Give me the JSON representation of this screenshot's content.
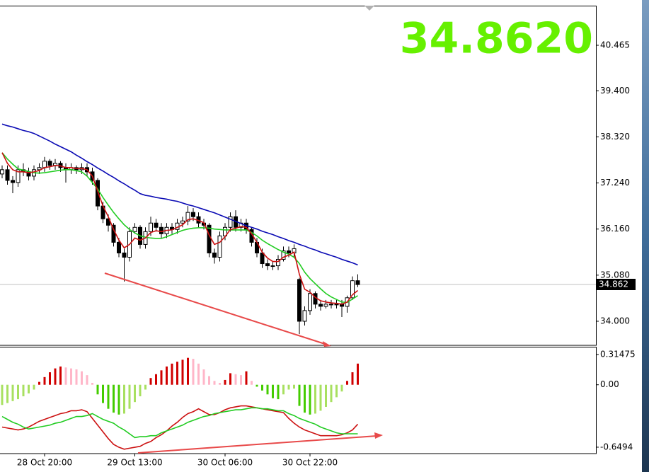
{
  "chart_data": {
    "type": "candlestick",
    "price_display": "34.8620",
    "categories": [
      null,
      null,
      null,
      null,
      null,
      null,
      null,
      null,
      "28 Oct 20:00",
      null,
      null,
      null,
      null,
      null,
      null,
      null,
      null,
      null,
      null,
      null,
      null,
      null,
      null,
      null,
      null,
      "29 Oct 13:00",
      null,
      null,
      null,
      null,
      null,
      null,
      null,
      null,
      null,
      null,
      null,
      null,
      null,
      null,
      null,
      null,
      "30 Oct 06:00",
      null,
      null,
      null,
      null,
      null,
      null,
      null,
      null,
      null,
      null,
      null,
      null,
      null,
      null,
      null,
      "30 Oct 22:00",
      null,
      null,
      null,
      null,
      null,
      null,
      null,
      null,
      null
    ],
    "open": [
      37.45,
      37.55,
      37.3,
      37.25,
      37.55,
      37.5,
      37.4,
      37.55,
      37.6,
      37.75,
      37.65,
      37.7,
      37.6,
      37.55,
      37.6,
      37.55,
      37.6,
      37.5,
      37.3,
      36.7,
      36.4,
      36.25,
      35.85,
      35.6,
      35.5,
      36.1,
      36.2,
      35.8,
      36.1,
      36.3,
      36.2,
      36.05,
      36.2,
      36.15,
      36.3,
      36.35,
      36.55,
      36.45,
      36.3,
      36.25,
      35.6,
      35.5,
      36.0,
      36.2,
      36.45,
      36.2,
      36.3,
      36.15,
      35.85,
      35.6,
      35.35,
      35.3,
      35.3,
      35.45,
      35.65,
      35.6,
      34.98,
      34.0,
      34.25,
      34.65,
      34.4,
      34.35,
      34.4,
      34.4,
      34.4,
      34.35,
      34.55,
      34.95
    ],
    "high": [
      37.65,
      37.65,
      37.4,
      37.65,
      37.7,
      37.6,
      37.65,
      37.7,
      37.85,
      37.8,
      37.8,
      37.75,
      37.7,
      37.7,
      37.65,
      37.7,
      37.7,
      37.6,
      37.35,
      36.8,
      36.5,
      36.3,
      35.95,
      35.7,
      36.2,
      36.3,
      36.25,
      36.2,
      36.45,
      36.4,
      36.3,
      36.3,
      36.3,
      36.4,
      36.45,
      36.7,
      36.65,
      36.55,
      36.4,
      36.3,
      35.7,
      36.1,
      36.3,
      36.55,
      36.6,
      36.4,
      36.4,
      36.2,
      35.95,
      35.7,
      35.45,
      35.4,
      35.55,
      35.75,
      35.75,
      35.8,
      35.02,
      34.35,
      34.75,
      34.7,
      34.5,
      34.5,
      34.5,
      34.5,
      34.5,
      34.6,
      35.05,
      35.1
    ],
    "low": [
      37.35,
      37.2,
      37.0,
      37.15,
      37.4,
      37.3,
      37.3,
      37.45,
      37.5,
      37.55,
      37.55,
      37.5,
      37.25,
      37.45,
      37.45,
      37.45,
      37.4,
      37.2,
      36.6,
      36.3,
      36.1,
      35.75,
      35.5,
      34.93,
      35.4,
      36.05,
      35.7,
      35.7,
      36.0,
      36.1,
      35.95,
      35.95,
      36.05,
      36.05,
      36.2,
      36.25,
      36.35,
      36.2,
      36.15,
      35.5,
      35.35,
      35.4,
      35.9,
      36.1,
      36.1,
      36.1,
      36.05,
      35.75,
      35.5,
      35.25,
      35.2,
      35.2,
      35.2,
      35.4,
      35.5,
      35.5,
      33.7,
      33.9,
      34.15,
      34.3,
      34.25,
      34.3,
      34.3,
      34.3,
      34.1,
      34.2,
      34.5,
      34.8
    ],
    "close": [
      37.55,
      37.3,
      37.25,
      37.55,
      37.5,
      37.4,
      37.55,
      37.6,
      37.75,
      37.65,
      37.7,
      37.6,
      37.55,
      37.6,
      37.55,
      37.6,
      37.5,
      37.3,
      36.7,
      36.4,
      36.25,
      35.85,
      35.6,
      35.5,
      36.1,
      36.2,
      35.8,
      36.1,
      36.3,
      36.2,
      36.05,
      36.2,
      36.15,
      36.3,
      36.35,
      36.55,
      36.45,
      36.3,
      36.25,
      35.6,
      35.5,
      36.0,
      36.2,
      36.45,
      36.2,
      36.3,
      36.15,
      35.85,
      35.6,
      35.35,
      35.3,
      35.3,
      35.45,
      35.65,
      35.6,
      35.7,
      34.0,
      34.25,
      34.65,
      34.4,
      34.35,
      34.4,
      34.4,
      34.4,
      34.35,
      34.55,
      34.95,
      34.86
    ],
    "series": [
      {
        "color": "#0a0ab4",
        "values": [
          38.62,
          38.58,
          38.55,
          38.51,
          38.47,
          38.44,
          38.4,
          38.34,
          38.28,
          38.22,
          38.15,
          38.09,
          38.03,
          37.97,
          37.89,
          37.82,
          37.74,
          37.67,
          37.59,
          37.52,
          37.44,
          37.37,
          37.29,
          37.22,
          37.14,
          37.07,
          36.99,
          36.95,
          36.93,
          36.9,
          36.88,
          36.86,
          36.83,
          36.81,
          36.77,
          36.73,
          36.7,
          36.66,
          36.62,
          36.58,
          36.54,
          36.49,
          36.44,
          36.39,
          36.34,
          36.29,
          36.24,
          36.2,
          36.16,
          36.11,
          36.07,
          36.03,
          35.98,
          35.94,
          35.89,
          35.85,
          35.8,
          35.76,
          35.71,
          35.67,
          35.62,
          35.58,
          35.54,
          35.5,
          35.45,
          35.41,
          35.37,
          35.32
        ]
      },
      {
        "color": "#22cc22",
        "values": [
          37.95,
          37.8,
          37.68,
          37.57,
          37.54,
          37.51,
          37.48,
          37.47,
          37.48,
          37.5,
          37.52,
          37.54,
          37.55,
          37.55,
          37.53,
          37.5,
          37.4,
          37.25,
          37.1,
          36.9,
          36.72,
          36.55,
          36.4,
          36.26,
          36.15,
          36.07,
          36.0,
          35.97,
          35.95,
          35.94,
          35.94,
          35.98,
          36.03,
          36.08,
          36.13,
          36.16,
          36.18,
          36.19,
          36.19,
          36.18,
          36.16,
          36.15,
          36.14,
          36.14,
          36.14,
          36.14,
          36.14,
          36.08,
          36.0,
          35.9,
          35.82,
          35.75,
          35.68,
          35.62,
          35.57,
          35.5,
          35.35,
          35.15,
          35.0,
          34.88,
          34.76,
          34.65,
          34.57,
          34.51,
          34.45,
          34.44,
          34.52,
          34.6
        ]
      },
      {
        "color": "#cc1111",
        "values": [
          37.95,
          37.7,
          37.55,
          37.5,
          37.5,
          37.48,
          37.5,
          37.53,
          37.6,
          37.62,
          37.65,
          37.64,
          37.6,
          37.6,
          37.58,
          37.58,
          37.55,
          37.4,
          37.05,
          36.7,
          36.45,
          36.15,
          35.9,
          35.72,
          35.8,
          35.95,
          35.9,
          35.95,
          36.08,
          36.12,
          36.1,
          36.13,
          36.14,
          36.2,
          36.26,
          36.38,
          36.4,
          36.36,
          36.31,
          36.02,
          35.8,
          35.85,
          35.98,
          36.15,
          36.18,
          36.22,
          36.2,
          36.05,
          35.85,
          35.62,
          35.48,
          35.4,
          35.4,
          35.5,
          35.55,
          35.62,
          35.1,
          34.75,
          34.68,
          34.56,
          34.48,
          34.45,
          34.43,
          34.42,
          34.4,
          34.45,
          34.62,
          34.72
        ]
      }
    ],
    "ylim": [
      33.436,
      41.377
    ],
    "yticks": [
      {
        "value": 34,
        "label": "34.000"
      },
      {
        "value": 35.08,
        "label": "35.080"
      },
      {
        "value": 36.16,
        "label": "36.160"
      },
      {
        "value": 37.24,
        "label": "37.240"
      },
      {
        "value": 38.32,
        "label": "38.320"
      },
      {
        "value": 39.4,
        "label": "39.400"
      },
      40.465
    ],
    "current": 34.862,
    "indicator": {
      "type": "macd",
      "histogram": [
        -0.21,
        -0.19,
        -0.17,
        -0.15,
        -0.12,
        -0.09,
        -0.05,
        0.03,
        0.08,
        0.13,
        0.17,
        0.19,
        0.18,
        0.17,
        0.16,
        0.14,
        0.1,
        0.02,
        -0.1,
        -0.19,
        -0.25,
        -0.29,
        -0.31,
        -0.3,
        -0.25,
        -0.18,
        -0.12,
        -0.05,
        0.07,
        0.11,
        0.15,
        0.19,
        0.22,
        0.24,
        0.26,
        0.28,
        0.27,
        0.22,
        0.16,
        0.09,
        0.04,
        0.02,
        0.05,
        0.12,
        0.11,
        0.1,
        0.14,
        0.04,
        -0.02,
        -0.06,
        -0.1,
        -0.14,
        -0.15,
        -0.1,
        -0.05,
        -0.04,
        -0.22,
        -0.29,
        -0.31,
        -0.3,
        -0.27,
        -0.23,
        -0.18,
        -0.13,
        -0.07,
        0.04,
        0.13,
        0.22
      ],
      "histogram_colors": [
        "#d00000",
        "#ffb6c8",
        "#44cc00",
        "#a8e060"
      ],
      "series": [
        {
          "color": "#cc1111",
          "values": [
            -0.44,
            -0.45,
            -0.46,
            -0.47,
            -0.46,
            -0.44,
            -0.41,
            -0.38,
            -0.36,
            -0.34,
            -0.32,
            -0.3,
            -0.29,
            -0.27,
            -0.27,
            -0.26,
            -0.28,
            -0.35,
            -0.42,
            -0.49,
            -0.56,
            -0.62,
            -0.65,
            -0.67,
            -0.66,
            -0.65,
            -0.64,
            -0.61,
            -0.59,
            -0.55,
            -0.52,
            -0.48,
            -0.43,
            -0.39,
            -0.34,
            -0.3,
            -0.28,
            -0.25,
            -0.28,
            -0.31,
            -0.31,
            -0.29,
            -0.26,
            -0.24,
            -0.23,
            -0.22,
            -0.22,
            -0.23,
            -0.24,
            -0.25,
            -0.26,
            -0.27,
            -0.28,
            -0.29,
            -0.35,
            -0.4,
            -0.44,
            -0.47,
            -0.49,
            -0.51,
            -0.53,
            -0.53,
            -0.53,
            -0.53,
            -0.52,
            -0.5,
            -0.47,
            -0.41
          ]
        },
        {
          "color": "#22cc22",
          "values": [
            -0.33,
            -0.36,
            -0.39,
            -0.41,
            -0.44,
            -0.46,
            -0.45,
            -0.44,
            -0.43,
            -0.42,
            -0.4,
            -0.39,
            -0.37,
            -0.35,
            -0.33,
            -0.33,
            -0.32,
            -0.3,
            -0.33,
            -0.36,
            -0.38,
            -0.4,
            -0.44,
            -0.47,
            -0.51,
            -0.55,
            -0.54,
            -0.54,
            -0.53,
            -0.53,
            -0.5,
            -0.48,
            -0.46,
            -0.44,
            -0.42,
            -0.39,
            -0.37,
            -0.35,
            -0.33,
            -0.32,
            -0.3,
            -0.29,
            -0.28,
            -0.27,
            -0.26,
            -0.26,
            -0.25,
            -0.24,
            -0.24,
            -0.25,
            -0.25,
            -0.26,
            -0.27,
            -0.27,
            -0.3,
            -0.32,
            -0.35,
            -0.37,
            -0.39,
            -0.41,
            -0.44,
            -0.46,
            -0.48,
            -0.5,
            -0.51,
            -0.51,
            -0.51,
            -0.51
          ]
        }
      ],
      "ylim": [
        -0.716,
        0.388
      ],
      "yticks": [
        0.31475,
        {
          "value": 0,
          "label": "0.00"
        },
        -0.6494
      ]
    }
  }
}
